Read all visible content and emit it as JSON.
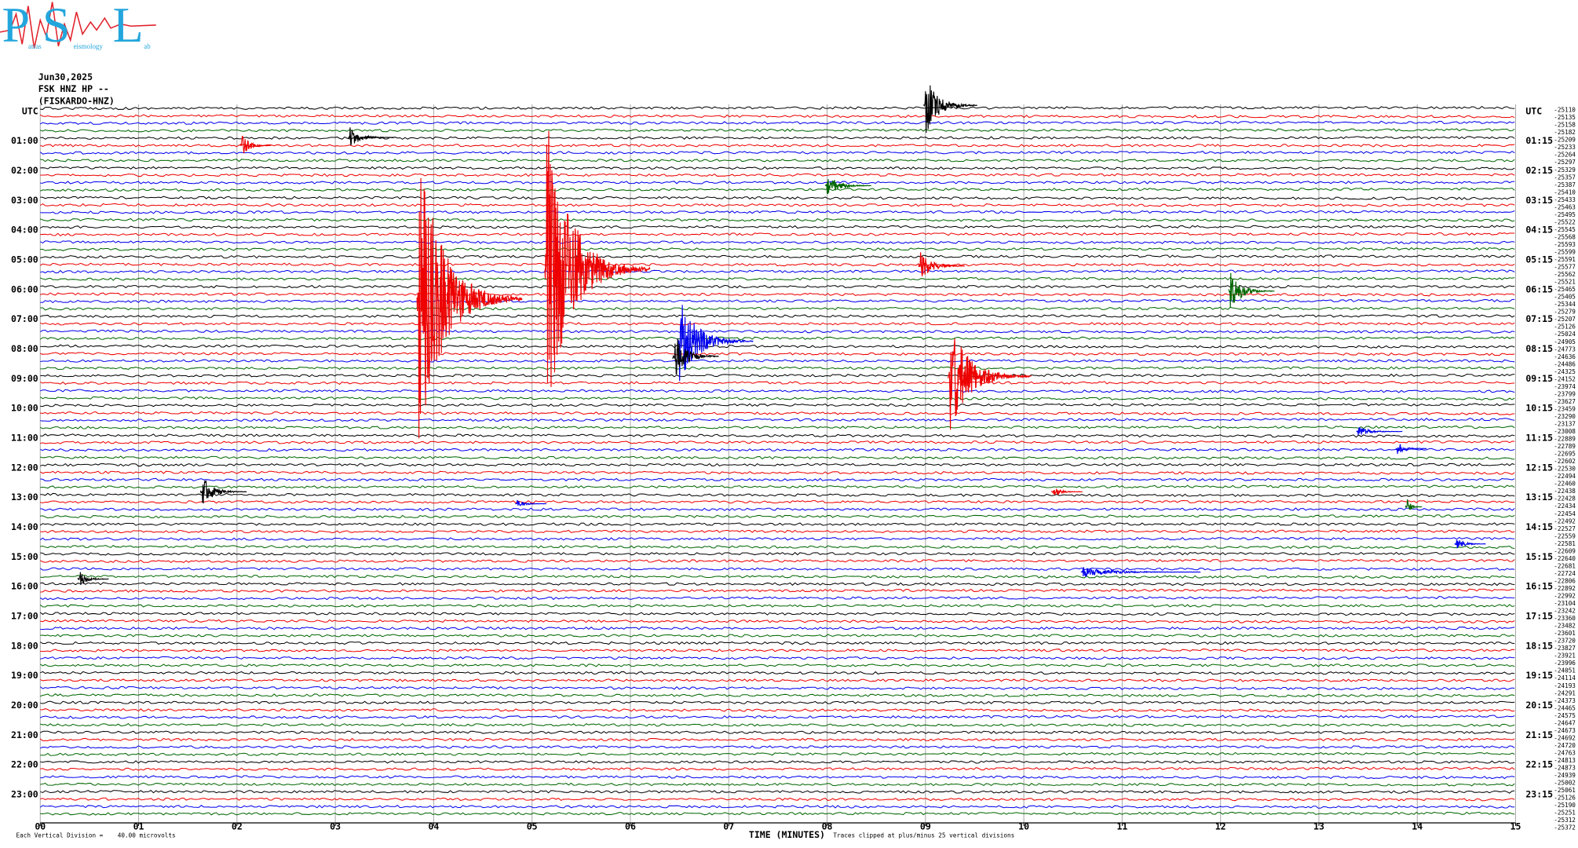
{
  "logo": {
    "letters": [
      "P",
      "S",
      "L"
    ],
    "words": [
      "atras",
      "eismology",
      "ab"
    ]
  },
  "header": {
    "date": "Jun30,2025",
    "channel": "FSK HNZ HP --",
    "station": "(FISKARDO-HNZ)"
  },
  "left_labels": [
    "UTC",
    "01:00",
    "02:00",
    "03:00",
    "04:00",
    "05:00",
    "06:00",
    "07:00",
    "08:00",
    "09:00",
    "10:00",
    "11:00",
    "12:00",
    "13:00",
    "14:00",
    "15:00",
    "16:00",
    "17:00",
    "18:00",
    "19:00",
    "20:00",
    "21:00",
    "22:00",
    "23:00"
  ],
  "right_labels": [
    "UTC",
    "01:15",
    "02:15",
    "03:15",
    "04:15",
    "05:15",
    "06:15",
    "07:15",
    "08:15",
    "09:15",
    "10:15",
    "11:15",
    "12:15",
    "13:15",
    "14:15",
    "15:15",
    "16:15",
    "17:15",
    "18:15",
    "19:15",
    "20:15",
    "21:15",
    "22:15",
    "23:15"
  ],
  "offsets": [
    -25110,
    -25135,
    -25158,
    -25182,
    -25209,
    -25233,
    -25264,
    -25297,
    -25329,
    -25357,
    -25387,
    -25410,
    -25433,
    -25463,
    -25495,
    -25522,
    -25545,
    -25568,
    -25593,
    -25599,
    -25591,
    -25577,
    -25562,
    -25521,
    -25465,
    -25405,
    -25344,
    -25279,
    -25207,
    -25126,
    -25024,
    -24905,
    -24773,
    -24636,
    -24486,
    -24325,
    -24152,
    -23974,
    -23799,
    -23627,
    -23459,
    -23290,
    -23137,
    -23008,
    -22889,
    -22789,
    -22695,
    -22602,
    -22530,
    -22494,
    -22460,
    -22438,
    -22428,
    -22434,
    -22454,
    -22492,
    -22527,
    -22559,
    -22581,
    -22609,
    -22640,
    -22681,
    -22724,
    -22806,
    -22892,
    -22992,
    -23104,
    -23242,
    -23360,
    -23482,
    -23601,
    -23720,
    -23827,
    -23921,
    -23996,
    -24051,
    -24114,
    -24193,
    -24291,
    -24373,
    -24465,
    -24575,
    -24647,
    -24673,
    -24692,
    -24720,
    -24763,
    -24813,
    -24873,
    -24939,
    -25002,
    -25061,
    -25126,
    -25190,
    -25251,
    -25312,
    -25372
  ],
  "x_axis": {
    "ticks": [
      "00",
      "01",
      "02",
      "03",
      "04",
      "05",
      "06",
      "07",
      "08",
      "09",
      "10",
      "11",
      "12",
      "13",
      "14",
      "15"
    ],
    "title": "TIME (MINUTES)"
  },
  "footer": {
    "scale": "Each Vertical Division =    40.00 microvolts",
    "clip": "Traces clipped at plus/minus 25 vertical divisions"
  }
}
